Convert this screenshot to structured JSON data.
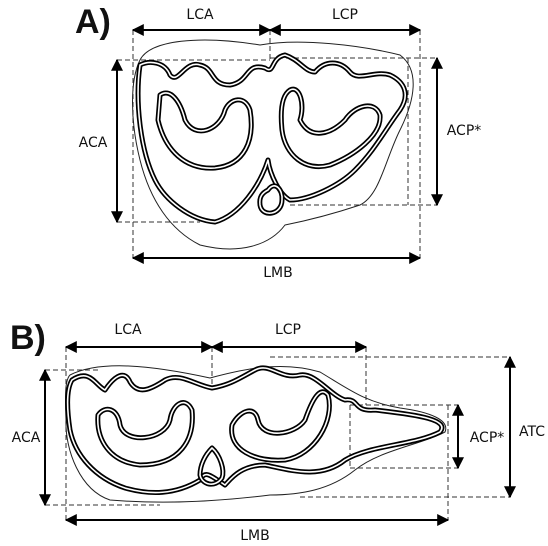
{
  "panels": [
    {
      "label": "A)",
      "measurements": {
        "lca": "LCA",
        "lcp": "LCP",
        "aca": "ACA",
        "acp": "ACP*",
        "lmb": "LMB"
      }
    },
    {
      "label": "B)",
      "measurements": {
        "lca": "LCA",
        "lcp": "LCP",
        "aca": "ACA",
        "acp": "ACP*",
        "atc": "ATC",
        "lmb": "LMB"
      }
    }
  ]
}
